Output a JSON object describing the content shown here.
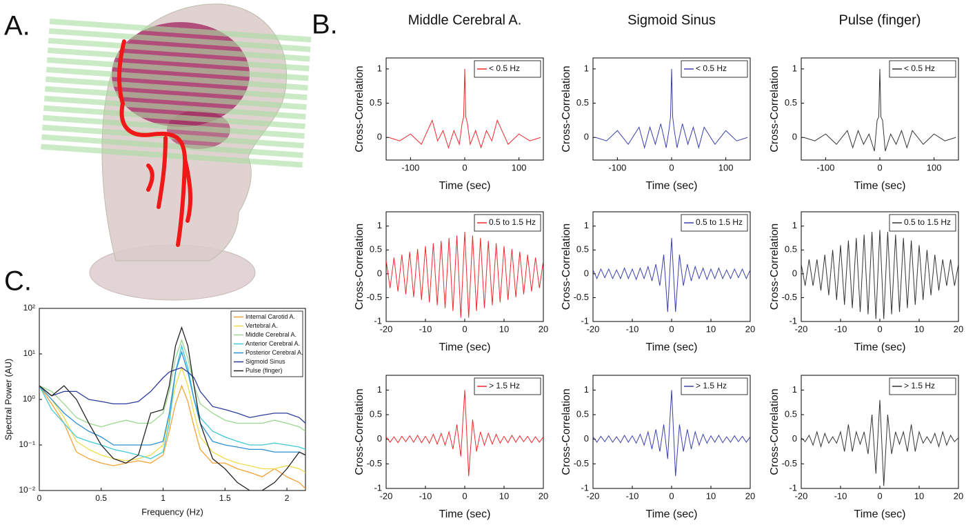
{
  "panel_labels": [
    "A.",
    "B.",
    "C."
  ],
  "chart_data": [
    {
      "type": "line",
      "xlabel": "Frequency (Hz)",
      "ylabel": "Spectral Power (AU)",
      "log_y": true,
      "legend": "upper right",
      "x": [
        0,
        0.1,
        0.2,
        0.3,
        0.4,
        0.5,
        0.6,
        0.7,
        0.8,
        0.9,
        1.0,
        1.05,
        1.1,
        1.15,
        1.2,
        1.25,
        1.3,
        1.4,
        1.5,
        1.6,
        1.7,
        1.8,
        1.9,
        2.0,
        2.1,
        2.15
      ],
      "xlim": [
        0,
        2.15
      ],
      "ylim": [
        0.01,
        100
      ],
      "xticks": [
        0,
        0.5,
        1,
        1.5,
        2
      ],
      "yticks": [
        {
          "value": 0.01,
          "label": "10⁻²"
        },
        {
          "value": 0.1,
          "label": "10⁻¹"
        },
        {
          "value": 1,
          "label": "10⁰"
        },
        {
          "value": 10,
          "label": "10¹"
        },
        {
          "value": 100,
          "label": "10²"
        }
      ],
      "series": [
        {
          "name": "Internal Carotid A.",
          "color": "#f4a235",
          "values": [
            2,
            0.8,
            0.3,
            0.07,
            0.05,
            0.04,
            0.035,
            0.04,
            0.045,
            0.04,
            0.06,
            0.2,
            0.8,
            2,
            0.9,
            0.25,
            0.08,
            0.04,
            0.04,
            0.03,
            0.025,
            0.02,
            0.03,
            0.02,
            0.015,
            0.011
          ]
        },
        {
          "name": "Vertebral A.",
          "color": "#eedc4a",
          "values": [
            2,
            1,
            0.4,
            0.12,
            0.08,
            0.06,
            0.05,
            0.045,
            0.05,
            0.06,
            0.1,
            0.4,
            2,
            5,
            2,
            0.5,
            0.15,
            0.07,
            0.05,
            0.04,
            0.035,
            0.03,
            0.03,
            0.035,
            0.03,
            0.025
          ]
        },
        {
          "name": "Middle Cerebral A.",
          "color": "#9ad88d",
          "values": [
            2,
            1.5,
            0.8,
            0.4,
            0.3,
            0.25,
            0.3,
            0.35,
            0.3,
            0.3,
            0.5,
            1.5,
            8,
            20,
            8,
            2,
            0.8,
            0.5,
            0.35,
            0.3,
            0.3,
            0.3,
            0.35,
            0.3,
            0.25,
            0.2
          ]
        },
        {
          "name": "Anterior Cerebral A.",
          "color": "#3fc8d8",
          "values": [
            2,
            0.6,
            0.3,
            0.15,
            0.12,
            0.1,
            0.08,
            0.07,
            0.06,
            0.05,
            0.07,
            0.3,
            4,
            15,
            5,
            1,
            0.4,
            0.2,
            0.15,
            0.12,
            0.1,
            0.1,
            0.11,
            0.1,
            0.09,
            0.08
          ]
        },
        {
          "name": "Posterior Cerebral A.",
          "color": "#2a8fd4",
          "values": [
            2,
            1,
            0.5,
            0.3,
            0.2,
            0.15,
            0.1,
            0.1,
            0.1,
            0.1,
            0.12,
            0.5,
            4,
            11,
            4,
            1,
            0.3,
            0.12,
            0.1,
            0.09,
            0.08,
            0.08,
            0.07,
            0.07,
            0.07,
            0.06
          ]
        },
        {
          "name": "Sigmoid Sinus",
          "color": "#2a3a9a",
          "values": [
            2,
            1.2,
            1.5,
            1.5,
            1,
            0.9,
            0.8,
            0.8,
            0.9,
            1.5,
            3,
            4,
            4.5,
            5,
            4,
            3,
            1.5,
            0.7,
            0.6,
            0.5,
            0.4,
            0.45,
            0.5,
            0.5,
            0.4,
            0.3
          ]
        },
        {
          "name": "Pulse (finger)",
          "color": "#222222",
          "values": [
            2,
            1.2,
            2,
            1,
            0.3,
            0.1,
            0.05,
            0.04,
            0.06,
            0.5,
            0.6,
            2,
            15,
            38,
            15,
            2,
            0.3,
            0.05,
            0.03,
            0.015,
            0.01,
            0.01,
            0.015,
            0.03,
            0.07,
            0.06
          ]
        }
      ]
    },
    {
      "type": "line",
      "title": "Middle Cerebral A.",
      "xlabel": "Time (sec)",
      "ylabel": "Cross-Correlation",
      "legend": "upper right",
      "x": [
        -140,
        -120,
        -100,
        -80,
        -60,
        -50,
        -40,
        -30,
        -20,
        -10,
        -5,
        -2,
        0,
        2,
        5,
        10,
        20,
        30,
        40,
        50,
        60,
        80,
        100,
        120,
        140
      ],
      "xlim": [
        -145,
        145
      ],
      "ylim": [
        -0.33,
        1.16
      ],
      "xticks": [
        -100,
        0,
        100
      ],
      "yticks": [
        0,
        0.5,
        1
      ],
      "series": [
        {
          "name": "< 0.5 Hz",
          "color": "#f0282d",
          "values": [
            0,
            -0.05,
            0.05,
            -0.1,
            0.25,
            -0.05,
            0.1,
            -0.15,
            0.1,
            -0.1,
            0.2,
            0.3,
            1,
            0.3,
            0.2,
            -0.1,
            0.1,
            -0.15,
            0.1,
            -0.05,
            0.25,
            -0.1,
            0.05,
            -0.05,
            0
          ]
        }
      ]
    },
    {
      "type": "line",
      "title": "Sigmoid Sinus",
      "xlabel": "Time (sec)",
      "ylabel": "Cross-Correlation",
      "legend": "upper right",
      "x": [
        -140,
        -120,
        -100,
        -80,
        -60,
        -50,
        -40,
        -30,
        -20,
        -10,
        -5,
        -2,
        0,
        2,
        5,
        10,
        20,
        30,
        40,
        50,
        60,
        80,
        100,
        120,
        140
      ],
      "xlim": [
        -145,
        145
      ],
      "ylim": [
        -0.33,
        1.16
      ],
      "xticks": [
        -100,
        0,
        100
      ],
      "yticks": [
        0,
        0.5,
        1
      ],
      "series": [
        {
          "name": "< 0.5 Hz",
          "color": "#3a3fb0",
          "values": [
            0,
            -0.05,
            0.1,
            -0.1,
            0.15,
            -0.15,
            0.15,
            -0.1,
            0.2,
            -0.15,
            0.1,
            0.3,
            1,
            0.3,
            0.1,
            -0.15,
            0.2,
            -0.1,
            0.15,
            -0.15,
            0.15,
            -0.1,
            0.1,
            -0.05,
            0
          ]
        }
      ]
    },
    {
      "type": "line",
      "title": "Pulse (finger)",
      "xlabel": "Time (sec)",
      "ylabel": "Cross-Correlation",
      "legend": "upper right",
      "x": [
        -140,
        -120,
        -100,
        -80,
        -60,
        -50,
        -40,
        -30,
        -20,
        -10,
        -5,
        -2,
        0,
        2,
        5,
        10,
        20,
        30,
        40,
        50,
        60,
        80,
        100,
        120,
        140
      ],
      "xlim": [
        -145,
        145
      ],
      "ylim": [
        -0.33,
        1.16
      ],
      "xticks": [
        -100,
        0,
        100
      ],
      "yticks": [
        0,
        0.5,
        1
      ],
      "series": [
        {
          "name": "< 0.5 Hz",
          "color": "#333333",
          "values": [
            0,
            -0.05,
            0.05,
            -0.1,
            0.1,
            -0.15,
            0.1,
            -0.1,
            0.05,
            -0.2,
            0.25,
            0.3,
            1,
            0.3,
            0.25,
            -0.2,
            0.05,
            -0.1,
            0.1,
            -0.15,
            0.1,
            -0.1,
            0.05,
            -0.05,
            0
          ]
        }
      ]
    },
    {
      "type": "line",
      "xlabel": "Time (sec)",
      "ylabel": "Cross-Correlation",
      "legend": "upper right",
      "x": [
        -20,
        -19,
        -18,
        -17,
        -16,
        -15,
        -14,
        -13,
        -12,
        -11,
        -10,
        -9,
        -8,
        -7,
        -6,
        -5,
        -4,
        -3,
        -2,
        -1,
        0,
        1,
        2,
        3,
        4,
        5,
        6,
        7,
        8,
        9,
        10,
        11,
        12,
        13,
        14,
        15,
        16,
        17,
        18,
        19,
        20
      ],
      "xlim": [
        -20,
        20
      ],
      "ylim": [
        -1,
        1.3
      ],
      "xticks": [
        -20,
        -10,
        0,
        10,
        20
      ],
      "yticks": [
        -1,
        -0.5,
        0,
        0.5,
        1
      ],
      "series": [
        {
          "name": "0.5 to 1.5 Hz",
          "color": "#f0282d",
          "values": [
            0.28,
            -0.3,
            0.34,
            -0.37,
            0.4,
            -0.43,
            0.46,
            -0.49,
            0.52,
            -0.55,
            0.58,
            -0.6,
            0.64,
            -0.66,
            0.69,
            -0.72,
            0.75,
            -0.78,
            0.8,
            -0.92,
            0.88,
            -0.92,
            0.8,
            -0.78,
            0.75,
            -0.72,
            0.69,
            -0.66,
            0.64,
            -0.6,
            0.58,
            -0.55,
            0.52,
            -0.49,
            0.46,
            -0.43,
            0.4,
            -0.37,
            0.34,
            -0.3,
            0.28
          ]
        }
      ]
    },
    {
      "type": "line",
      "xlabel": "Time (sec)",
      "ylabel": "Cross-Correlation",
      "legend": "upper right",
      "x": [
        -20,
        -19,
        -18,
        -17,
        -16,
        -15,
        -14,
        -13,
        -12,
        -11,
        -10,
        -9,
        -8,
        -7,
        -6,
        -5,
        -4,
        -3,
        -2,
        -1,
        0,
        1,
        2,
        3,
        4,
        5,
        6,
        7,
        8,
        9,
        10,
        11,
        12,
        13,
        14,
        15,
        16,
        17,
        18,
        19,
        20
      ],
      "xlim": [
        -20,
        20
      ],
      "ylim": [
        -1,
        1.3
      ],
      "xticks": [
        -20,
        -10,
        0,
        10,
        20
      ],
      "yticks": [
        -1,
        -0.5,
        0,
        0.5,
        1
      ],
      "series": [
        {
          "name": "0.5 to 1.5 Hz",
          "color": "#3a3fb0",
          "values": [
            0.08,
            -0.1,
            0.1,
            -0.08,
            0.1,
            -0.1,
            0.08,
            -0.1,
            0.12,
            -0.1,
            0.1,
            -0.12,
            0.12,
            -0.1,
            0.15,
            -0.15,
            0.2,
            -0.25,
            0.4,
            -0.8,
            0.75,
            -0.8,
            0.4,
            -0.25,
            0.2,
            -0.15,
            0.15,
            -0.1,
            0.12,
            -0.12,
            0.1,
            -0.1,
            0.12,
            -0.1,
            0.08,
            -0.1,
            0.1,
            -0.08,
            0.1,
            -0.1,
            0.08
          ]
        }
      ]
    },
    {
      "type": "line",
      "xlabel": "Time (sec)",
      "ylabel": "Cross-Correlation",
      "legend": "upper right",
      "x": [
        -20,
        -19,
        -18,
        -17,
        -16,
        -15,
        -14,
        -13,
        -12,
        -11,
        -10,
        -9,
        -8,
        -7,
        -6,
        -5,
        -4,
        -3,
        -2,
        -1,
        0,
        1,
        2,
        3,
        4,
        5,
        6,
        7,
        8,
        9,
        10,
        11,
        12,
        13,
        14,
        15,
        16,
        17,
        18,
        19,
        20
      ],
      "xlim": [
        -20,
        20
      ],
      "ylim": [
        -1,
        1.3
      ],
      "xticks": [
        -20,
        -10,
        0,
        10,
        20
      ],
      "yticks": [
        -1,
        -0.5,
        0,
        0.5,
        1
      ],
      "series": [
        {
          "name": "0.5 to 1.5 Hz",
          "color": "#333333",
          "values": [
            0.2,
            -0.25,
            0.3,
            -0.25,
            0.3,
            -0.35,
            0.4,
            -0.45,
            0.5,
            -0.55,
            0.6,
            -0.65,
            0.7,
            -0.72,
            0.75,
            -0.8,
            0.82,
            -0.85,
            0.88,
            -0.95,
            0.92,
            -0.95,
            0.88,
            -0.85,
            0.82,
            -0.8,
            0.75,
            -0.72,
            0.7,
            -0.65,
            0.6,
            -0.55,
            0.5,
            -0.45,
            0.4,
            -0.35,
            0.3,
            -0.25,
            0.3,
            -0.25,
            0.2
          ]
        }
      ]
    },
    {
      "type": "line",
      "xlabel": "Time (sec)",
      "ylabel": "Cross-Correlation",
      "legend": "upper right",
      "x": [
        -20,
        -19,
        -18,
        -17,
        -16,
        -15,
        -14,
        -13,
        -12,
        -11,
        -10,
        -9,
        -8,
        -7,
        -6,
        -5,
        -4,
        -3,
        -2,
        -1,
        0,
        1,
        2,
        3,
        4,
        5,
        6,
        7,
        8,
        9,
        10,
        11,
        12,
        13,
        14,
        15,
        16,
        17,
        18,
        19,
        20
      ],
      "xlim": [
        -20,
        20
      ],
      "ylim": [
        -1,
        1.3
      ],
      "xticks": [
        -20,
        -10,
        0,
        10,
        20
      ],
      "yticks": [
        -1,
        -0.5,
        0,
        0.5,
        1
      ],
      "series": [
        {
          "name": "> 1.5 Hz",
          "color": "#f0282d",
          "values": [
            0.05,
            -0.06,
            0.05,
            -0.07,
            0.06,
            -0.05,
            0.07,
            -0.06,
            0.08,
            -0.07,
            0.06,
            -0.08,
            0.1,
            -0.1,
            0.12,
            -0.12,
            0.15,
            -0.2,
            0.3,
            -0.35,
            1,
            -0.75,
            0.4,
            -0.25,
            0.15,
            -0.12,
            0.12,
            -0.1,
            0.1,
            -0.08,
            0.06,
            -0.07,
            0.08,
            -0.06,
            0.07,
            -0.05,
            0.06,
            -0.07,
            0.05,
            -0.06,
            0.05
          ]
        }
      ]
    },
    {
      "type": "line",
      "xlabel": "Time (sec)",
      "ylabel": "Cross-Correlation",
      "legend": "upper right",
      "x": [
        -20,
        -19,
        -18,
        -17,
        -16,
        -15,
        -14,
        -13,
        -12,
        -11,
        -10,
        -9,
        -8,
        -7,
        -6,
        -5,
        -4,
        -3,
        -2,
        -1,
        0,
        1,
        2,
        3,
        4,
        5,
        6,
        7,
        8,
        9,
        10,
        11,
        12,
        13,
        14,
        15,
        16,
        17,
        18,
        19,
        20
      ],
      "xlim": [
        -20,
        20
      ],
      "ylim": [
        -1,
        1.3
      ],
      "xticks": [
        -20,
        -10,
        0,
        10,
        20
      ],
      "yticks": [
        -1,
        -0.5,
        0,
        0.5,
        1
      ],
      "series": [
        {
          "name": "> 1.5 Hz",
          "color": "#3a3fb0",
          "values": [
            0.05,
            -0.06,
            0.06,
            -0.05,
            0.07,
            -0.06,
            0.05,
            -0.07,
            0.08,
            -0.06,
            0.07,
            -0.08,
            0.1,
            -0.12,
            0.15,
            -0.2,
            0.2,
            -0.25,
            0.3,
            -0.4,
            1,
            -0.75,
            0.3,
            -0.25,
            0.2,
            -0.2,
            0.15,
            -0.12,
            0.1,
            -0.08,
            0.07,
            -0.06,
            0.08,
            -0.07,
            0.05,
            -0.06,
            0.07,
            -0.05,
            0.06,
            -0.06,
            0.05
          ]
        }
      ]
    },
    {
      "type": "line",
      "xlabel": "Time (sec)",
      "ylabel": "Cross-Correlation",
      "legend": "upper right",
      "x": [
        -20,
        -19,
        -18,
        -17,
        -16,
        -15,
        -14,
        -13,
        -12,
        -11,
        -10,
        -9,
        -8,
        -7,
        -6,
        -5,
        -4,
        -3,
        -2,
        -1,
        0,
        1,
        2,
        3,
        4,
        5,
        6,
        7,
        8,
        9,
        10,
        11,
        12,
        13,
        14,
        15,
        16,
        17,
        18,
        19,
        20
      ],
      "xlim": [
        -20,
        20
      ],
      "ylim": [
        -1,
        1.3
      ],
      "xticks": [
        -20,
        -10,
        0,
        10,
        20
      ],
      "yticks": [
        -1,
        -0.5,
        0,
        0.5,
        1
      ],
      "series": [
        {
          "name": "> 1.5 Hz",
          "color": "#333333",
          "values": [
            0.03,
            -0.05,
            0.08,
            -0.12,
            0.15,
            -0.15,
            0.12,
            -0.08,
            0.05,
            -0.08,
            0.15,
            -0.25,
            0.3,
            -0.25,
            0.15,
            -0.1,
            0.15,
            -0.3,
            0.5,
            -0.7,
            0.8,
            -0.95,
            0.5,
            -0.3,
            0.15,
            -0.1,
            0.15,
            -0.25,
            0.3,
            -0.25,
            0.15,
            -0.08,
            0.05,
            -0.08,
            0.12,
            -0.15,
            0.15,
            -0.12,
            0.08,
            -0.05,
            0.03
          ]
        }
      ]
    }
  ]
}
